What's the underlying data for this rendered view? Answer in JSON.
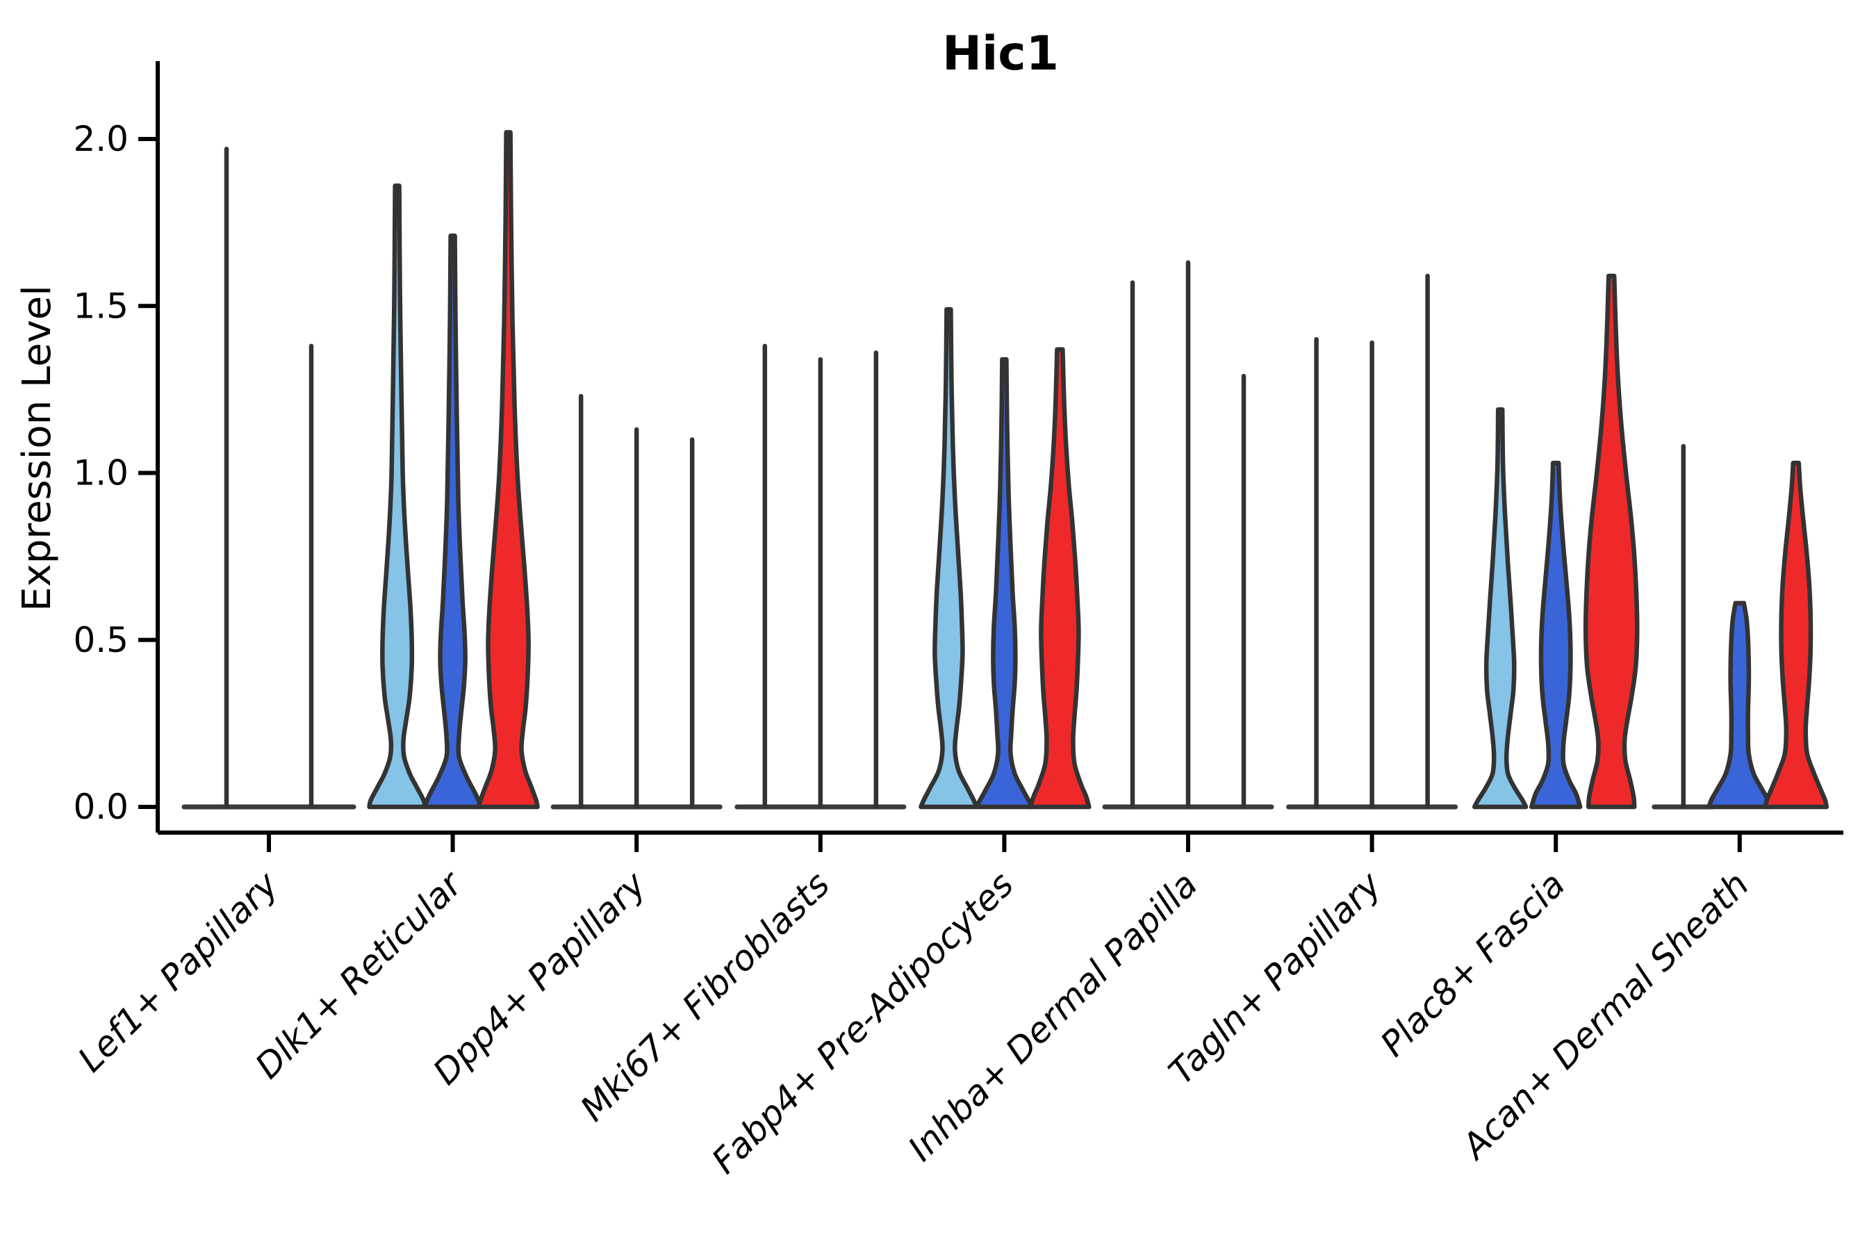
{
  "title": "Hic1",
  "y_axis": {
    "label": "Expression Level",
    "tick_labels": [
      "0.0",
      "0.5",
      "1.0",
      "1.5",
      "2.0"
    ],
    "tick_values": [
      0,
      0.5,
      1.0,
      1.5,
      2.0
    ]
  },
  "colors": {
    "light_blue": "#85C3E7",
    "dark_blue": "#3A65D9",
    "red": "#EF2929",
    "outline": "#333333",
    "baseline": "#3a3a3a",
    "axis": "#000000"
  },
  "chart_data": {
    "type": "violin",
    "title": "Hic1",
    "ylabel": "Expression Level",
    "ylim": [
      -0.08,
      2.24
    ],
    "yticks": [
      0,
      0.5,
      1.0,
      1.5,
      2.0
    ],
    "grid": false,
    "legend": "none",
    "categories": [
      "Lef1+ Papillary",
      "Dlk1+ Reticular",
      "Dpp4+ Papillary",
      "Mki67+ Fibroblasts",
      "Fabp4+ Pre-Adipocytes",
      "Inhba+ Dermal Papilla",
      "Tagln+ Papillary",
      "Plac8+ Fascia",
      "Acan+ Dermal Sheath"
    ],
    "groups": [
      {
        "category": "Lef1+ Papillary",
        "violins": [
          {
            "color": "light_blue",
            "max": 1.97,
            "shape": "spike",
            "x_offset": -61,
            "base_half": 61
          },
          {
            "color": "dark_blue",
            "max": 1.38,
            "shape": "spike",
            "x_offset": 61,
            "base_half": 61
          }
        ]
      },
      {
        "category": "Dlk1+ Reticular",
        "violins": [
          {
            "color": "light_blue",
            "max": 1.86,
            "shape": "body",
            "x_offset": -80,
            "profile": [
              [
                1.86,
                3
              ],
              [
                1.55,
                4
              ],
              [
                1.25,
                6
              ],
              [
                1.0,
                8
              ],
              [
                0.85,
                11
              ],
              [
                0.72,
                15
              ],
              [
                0.6,
                19
              ],
              [
                0.5,
                21
              ],
              [
                0.42,
                21
              ],
              [
                0.33,
                18
              ],
              [
                0.26,
                13
              ],
              [
                0.2,
                9
              ],
              [
                0.15,
                10
              ],
              [
                0.1,
                18
              ],
              [
                0.06,
                28
              ],
              [
                0.02,
                38
              ],
              [
                0,
                40
              ]
            ]
          },
          {
            "color": "dark_blue",
            "max": 1.71,
            "shape": "body",
            "x_offset": 0,
            "profile": [
              [
                1.71,
                3
              ],
              [
                1.45,
                4
              ],
              [
                1.15,
                6
              ],
              [
                0.92,
                8
              ],
              [
                0.75,
                11
              ],
              [
                0.62,
                14
              ],
              [
                0.52,
                17
              ],
              [
                0.44,
                18
              ],
              [
                0.36,
                16
              ],
              [
                0.28,
                12
              ],
              [
                0.21,
                9
              ],
              [
                0.15,
                9
              ],
              [
                0.09,
                20
              ],
              [
                0.05,
                30
              ],
              [
                0.02,
                37
              ],
              [
                0,
                40
              ]
            ]
          },
          {
            "color": "red",
            "max": 2.02,
            "shape": "body",
            "x_offset": 80,
            "profile": [
              [
                2.02,
                3
              ],
              [
                1.75,
                4
              ],
              [
                1.45,
                6
              ],
              [
                1.2,
                9
              ],
              [
                1.0,
                13
              ],
              [
                0.85,
                18
              ],
              [
                0.72,
                23
              ],
              [
                0.6,
                27
              ],
              [
                0.5,
                29
              ],
              [
                0.4,
                28
              ],
              [
                0.3,
                25
              ],
              [
                0.23,
                21
              ],
              [
                0.17,
                19
              ],
              [
                0.11,
                24
              ],
              [
                0.06,
                33
              ],
              [
                0.02,
                40
              ],
              [
                0,
                42
              ]
            ]
          }
        ]
      },
      {
        "category": "Dpp4+ Papillary",
        "violins": [
          {
            "color": "light_blue",
            "max": 1.23,
            "shape": "spike",
            "x_offset": -80,
            "base_half": 40
          },
          {
            "color": "dark_blue",
            "max": 1.13,
            "shape": "spike",
            "x_offset": 0,
            "base_half": 40
          },
          {
            "color": "red",
            "max": 1.1,
            "shape": "spike",
            "x_offset": 80,
            "base_half": 40
          }
        ]
      },
      {
        "category": "Mki67+ Fibroblasts",
        "violins": [
          {
            "color": "light_blue",
            "max": 1.38,
            "shape": "spike",
            "x_offset": -80,
            "base_half": 40
          },
          {
            "color": "dark_blue",
            "max": 1.34,
            "shape": "spike",
            "x_offset": 0,
            "base_half": 40
          },
          {
            "color": "red",
            "max": 1.36,
            "shape": "spike",
            "x_offset": 80,
            "base_half": 40
          }
        ]
      },
      {
        "category": "Fabp4+ Pre-Adipocytes",
        "violins": [
          {
            "color": "light_blue",
            "max": 1.49,
            "shape": "body",
            "x_offset": -80,
            "profile": [
              [
                1.49,
                3
              ],
              [
                1.28,
                4
              ],
              [
                1.08,
                6
              ],
              [
                0.92,
                9
              ],
              [
                0.78,
                13
              ],
              [
                0.65,
                17
              ],
              [
                0.55,
                19
              ],
              [
                0.46,
                20
              ],
              [
                0.38,
                18
              ],
              [
                0.3,
                15
              ],
              [
                0.23,
                11
              ],
              [
                0.17,
                9
              ],
              [
                0.11,
                14
              ],
              [
                0.06,
                26
              ],
              [
                0.02,
                36
              ],
              [
                0,
                40
              ]
            ]
          },
          {
            "color": "dark_blue",
            "max": 1.34,
            "shape": "body",
            "x_offset": 0,
            "profile": [
              [
                1.34,
                3
              ],
              [
                1.15,
                4
              ],
              [
                0.95,
                6
              ],
              [
                0.78,
                9
              ],
              [
                0.64,
                12
              ],
              [
                0.54,
                15
              ],
              [
                0.45,
                16
              ],
              [
                0.37,
                15
              ],
              [
                0.29,
                12
              ],
              [
                0.22,
                10
              ],
              [
                0.16,
                9
              ],
              [
                0.1,
                15
              ],
              [
                0.05,
                27
              ],
              [
                0.02,
                35
              ],
              [
                0,
                40
              ]
            ]
          },
          {
            "color": "red",
            "max": 1.37,
            "shape": "body",
            "x_offset": 80,
            "profile": [
              [
                1.37,
                4
              ],
              [
                1.22,
                6
              ],
              [
                1.08,
                9
              ],
              [
                0.96,
                13
              ],
              [
                0.85,
                18
              ],
              [
                0.74,
                22
              ],
              [
                0.63,
                25
              ],
              [
                0.53,
                27
              ],
              [
                0.44,
                26
              ],
              [
                0.35,
                24
              ],
              [
                0.27,
                21
              ],
              [
                0.2,
                19
              ],
              [
                0.13,
                21
              ],
              [
                0.07,
                30
              ],
              [
                0.03,
                38
              ],
              [
                0,
                42
              ]
            ]
          }
        ]
      },
      {
        "category": "Inhba+ Dermal Papilla",
        "violins": [
          {
            "color": "light_blue",
            "max": 1.57,
            "shape": "spike",
            "x_offset": -80,
            "base_half": 40
          },
          {
            "color": "dark_blue",
            "max": 1.63,
            "shape": "spike",
            "x_offset": 0,
            "base_half": 40
          },
          {
            "color": "red",
            "max": 1.29,
            "shape": "spike",
            "x_offset": 80,
            "base_half": 40
          }
        ]
      },
      {
        "category": "Tagln+ Papillary",
        "violins": [
          {
            "color": "light_blue",
            "max": 1.4,
            "shape": "spike",
            "x_offset": -80,
            "base_half": 40
          },
          {
            "color": "dark_blue",
            "max": 1.39,
            "shape": "spike",
            "x_offset": 0,
            "base_half": 40
          },
          {
            "color": "red",
            "max": 1.59,
            "shape": "spike",
            "x_offset": 80,
            "base_half": 40
          }
        ]
      },
      {
        "category": "Plac8+ Fascia",
        "violins": [
          {
            "color": "light_blue",
            "max": 1.19,
            "shape": "body",
            "x_offset": -80,
            "profile": [
              [
                1.19,
                3
              ],
              [
                1.02,
                4
              ],
              [
                0.87,
                7
              ],
              [
                0.73,
                11
              ],
              [
                0.61,
                15
              ],
              [
                0.51,
                18
              ],
              [
                0.43,
                20
              ],
              [
                0.35,
                19
              ],
              [
                0.28,
                15
              ],
              [
                0.21,
                11
              ],
              [
                0.15,
                9
              ],
              [
                0.1,
                11
              ],
              [
                0.06,
                20
              ],
              [
                0.02,
                32
              ],
              [
                0,
                37
              ]
            ]
          },
          {
            "color": "dark_blue",
            "max": 1.03,
            "shape": "body",
            "x_offset": 0,
            "profile": [
              [
                1.03,
                4
              ],
              [
                0.92,
                6
              ],
              [
                0.8,
                10
              ],
              [
                0.68,
                15
              ],
              [
                0.58,
                19
              ],
              [
                0.49,
                21
              ],
              [
                0.41,
                21
              ],
              [
                0.33,
                19
              ],
              [
                0.26,
                15
              ],
              [
                0.19,
                11
              ],
              [
                0.13,
                11
              ],
              [
                0.08,
                19
              ],
              [
                0.04,
                29
              ],
              [
                0,
                35
              ]
            ]
          },
          {
            "color": "red",
            "max": 1.59,
            "shape": "body",
            "x_offset": 80,
            "profile": [
              [
                1.59,
                4
              ],
              [
                1.45,
                6
              ],
              [
                1.3,
                9
              ],
              [
                1.15,
                14
              ],
              [
                1.0,
                21
              ],
              [
                0.87,
                28
              ],
              [
                0.75,
                33
              ],
              [
                0.63,
                36
              ],
              [
                0.52,
                37
              ],
              [
                0.42,
                35
              ],
              [
                0.33,
                29
              ],
              [
                0.26,
                23
              ],
              [
                0.2,
                19
              ],
              [
                0.14,
                20
              ],
              [
                0.08,
                27
              ],
              [
                0.03,
                32
              ],
              [
                0,
                33
              ]
            ]
          }
        ]
      },
      {
        "category": "Acan+ Dermal Sheath",
        "violins": [
          {
            "color": "light_blue",
            "max": 1.08,
            "shape": "spike",
            "x_offset": -81,
            "base_half": 42
          },
          {
            "color": "dark_blue",
            "max": 0.61,
            "shape": "body",
            "x_offset": 0,
            "profile": [
              [
                0.61,
                6
              ],
              [
                0.56,
                10
              ],
              [
                0.5,
                12
              ],
              [
                0.43,
                13
              ],
              [
                0.36,
                13
              ],
              [
                0.29,
                12
              ],
              [
                0.22,
                12
              ],
              [
                0.16,
                13
              ],
              [
                0.1,
                20
              ],
              [
                0.05,
                33
              ],
              [
                0.02,
                41
              ],
              [
                0,
                44
              ]
            ]
          },
          {
            "color": "red",
            "max": 1.03,
            "shape": "body",
            "x_offset": 81,
            "profile": [
              [
                1.03,
                4
              ],
              [
                0.96,
                6
              ],
              [
                0.87,
                10
              ],
              [
                0.77,
                15
              ],
              [
                0.67,
                19
              ],
              [
                0.57,
                21
              ],
              [
                0.47,
                21
              ],
              [
                0.38,
                19
              ],
              [
                0.3,
                16
              ],
              [
                0.23,
                14
              ],
              [
                0.16,
                16
              ],
              [
                0.1,
                26
              ],
              [
                0.05,
                36
              ],
              [
                0.02,
                42
              ],
              [
                0,
                44
              ]
            ]
          }
        ]
      }
    ]
  }
}
